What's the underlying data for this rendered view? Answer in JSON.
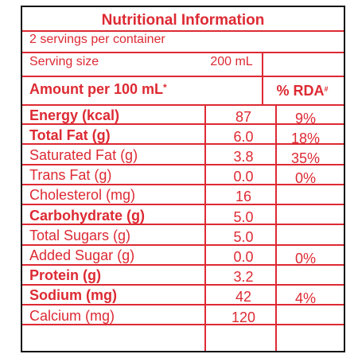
{
  "panel": {
    "title": "Nutritional Information",
    "servings_text": "2 servings per container",
    "serving_size_label": "Serving size",
    "serving_size_value": "200 mL",
    "amount_header": "Amount per 100 mL",
    "amount_header_mark": "*",
    "rda_header": "% RDA",
    "rda_header_mark": "#"
  },
  "rows": [
    {
      "nutrient": "Energy (kcal)",
      "amount": "87",
      "rda": "9%"
    },
    {
      "nutrient": "Total Fat (g)",
      "amount": "6.0",
      "rda": "18%"
    },
    {
      "nutrient": "Saturated Fat (g)",
      "amount": "3.8",
      "rda": "35%"
    },
    {
      "nutrient": "Trans Fat (g)",
      "amount": "0.0",
      "rda": "0%"
    },
    {
      "nutrient": "Cholesterol (mg)",
      "amount": "16",
      "rda": ""
    },
    {
      "nutrient": "Carbohydrate (g)",
      "amount": "5.0",
      "rda": ""
    },
    {
      "nutrient": "Total Sugars (g)",
      "amount": "5.0",
      "rda": ""
    },
    {
      "nutrient": "Added Sugar (g)",
      "amount": "0.0",
      "rda": "0%"
    },
    {
      "nutrient": "Protein (g)",
      "amount": "3.2",
      "rda": ""
    },
    {
      "nutrient": "Sodium (mg)",
      "amount": "42",
      "rda": "4%"
    },
    {
      "nutrient": "Calcium (mg)",
      "amount": "120",
      "rda": ""
    }
  ],
  "colors": {
    "accent": "#dd2a33",
    "border": "#111111",
    "background": "#ffffff"
  }
}
